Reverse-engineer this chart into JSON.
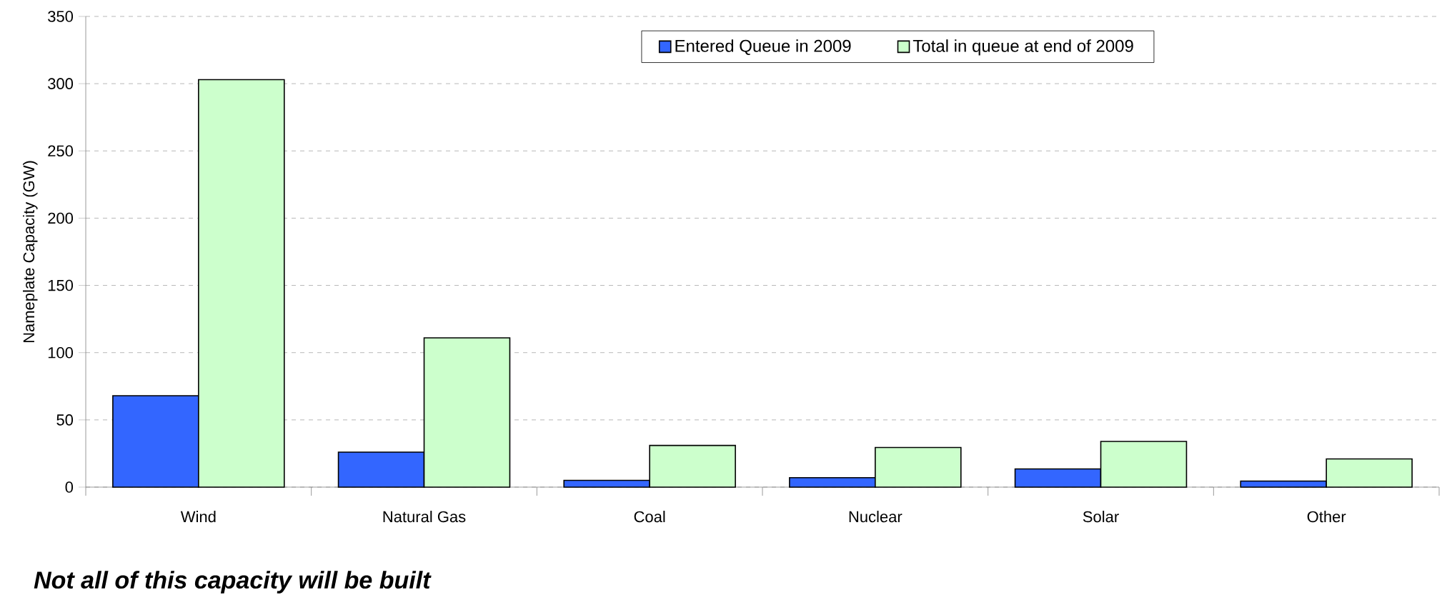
{
  "chart_data": {
    "type": "bar",
    "ylabel": "Nameplate Capacity (GW)",
    "categories": [
      "Wind",
      "Natural Gas",
      "Coal",
      "Nuclear",
      "Solar",
      "Other"
    ],
    "series": [
      {
        "name": "Entered Queue in 2009",
        "color": "#3366ff",
        "values": [
          68,
          26,
          5,
          7,
          13.5,
          4.5
        ]
      },
      {
        "name": "Total in queue at end of 2009",
        "color": "#ccffcc",
        "values": [
          303,
          111,
          31,
          29.5,
          34,
          21
        ]
      }
    ],
    "ylim": [
      0,
      350
    ],
    "yticks": [
      0,
      50,
      100,
      150,
      200,
      250,
      300,
      350
    ],
    "grid": "y",
    "legend": "top",
    "annotations": [
      "Not all of this capacity will be built"
    ]
  }
}
